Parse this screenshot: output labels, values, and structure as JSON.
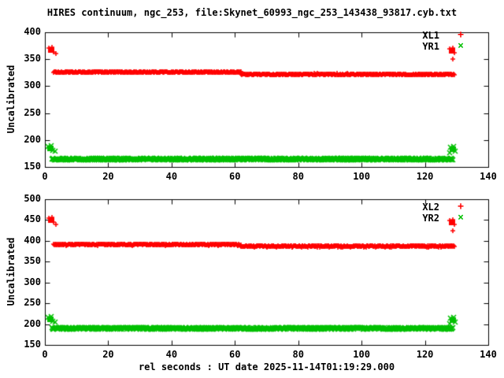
{
  "window": {
    "background": "#ffffff",
    "foreground": "#000000"
  },
  "title": "HIRES continuum, ngc_253, file:Skynet_60993_ngc_253_143438_93817.cyb.txt",
  "xlabel": "rel seconds : UT date 2025-11-14T01:19:29.000",
  "chart_data": [
    {
      "type": "scatter",
      "title": "",
      "xlabel": "",
      "ylabel": "Uncalibrated",
      "xlim": [
        0,
        140
      ],
      "ylim": [
        150,
        400
      ],
      "xticks": [
        0,
        20,
        40,
        60,
        80,
        100,
        120,
        140
      ],
      "yticks": [
        150,
        200,
        250,
        300,
        350,
        400
      ],
      "grid": false,
      "legend_position": "top-right-inside",
      "point_step": 0.2,
      "series": [
        {
          "name": "XL1",
          "color": "#ff0000",
          "marker": "plus",
          "glyph": "+",
          "segments": [
            {
              "x_start": 2.8,
              "x_end": 62,
              "y": 326,
              "jitter": 1.3
            },
            {
              "x_start": 62,
              "x_end": 129.3,
              "y": 322,
              "jitter": 1.3
            }
          ],
          "clusters": [
            {
              "x": 2.0,
              "y": 368
            },
            {
              "x": 128.6,
              "y": 367
            }
          ],
          "outliers": [
            {
              "x": 3.5,
              "y": 360
            },
            {
              "x": 128.9,
              "y": 350
            }
          ]
        },
        {
          "name": "YR1",
          "color": "#00c000",
          "marker": "cross",
          "glyph": "×",
          "segments": [
            {
              "x_start": 2.2,
              "x_end": 129,
              "y": 164.5,
              "jitter": 1.8
            }
          ],
          "clusters": [
            {
              "x": 1.8,
              "y": 185
            },
            {
              "x": 128.8,
              "y": 184
            }
          ],
          "outliers": [
            {
              "x": 3.2,
              "y": 179
            },
            {
              "x": 127.8,
              "y": 177
            }
          ]
        }
      ]
    },
    {
      "type": "scatter",
      "title": "",
      "xlabel": "",
      "ylabel": "Uncalibrated",
      "xlim": [
        0,
        140
      ],
      "ylim": [
        150,
        500
      ],
      "xticks": [
        0,
        20,
        40,
        60,
        80,
        100,
        120,
        140
      ],
      "yticks": [
        150,
        200,
        250,
        300,
        350,
        400,
        450,
        500
      ],
      "grid": false,
      "legend_position": "top-right-inside",
      "point_step": 0.2,
      "series": [
        {
          "name": "XL2",
          "color": "#ff0000",
          "marker": "plus",
          "glyph": "+",
          "segments": [
            {
              "x_start": 2.8,
              "x_end": 62,
              "y": 391,
              "jitter": 1.8
            },
            {
              "x_start": 62,
              "x_end": 129.3,
              "y": 387,
              "jitter": 1.8
            }
          ],
          "clusters": [
            {
              "x": 2.0,
              "y": 450
            },
            {
              "x": 128.6,
              "y": 446
            }
          ],
          "outliers": [
            {
              "x": 3.5,
              "y": 440
            },
            {
              "x": 128.9,
              "y": 424
            }
          ]
        },
        {
          "name": "YR2",
          "color": "#00c000",
          "marker": "cross",
          "glyph": "×",
          "segments": [
            {
              "x_start": 2.2,
              "x_end": 129,
              "y": 190,
              "jitter": 2.5
            }
          ],
          "clusters": [
            {
              "x": 1.8,
              "y": 212
            },
            {
              "x": 128.8,
              "y": 211
            }
          ],
          "outliers": [
            {
              "x": 3.2,
              "y": 205
            },
            {
              "x": 127.8,
              "y": 202
            }
          ]
        }
      ]
    }
  ]
}
